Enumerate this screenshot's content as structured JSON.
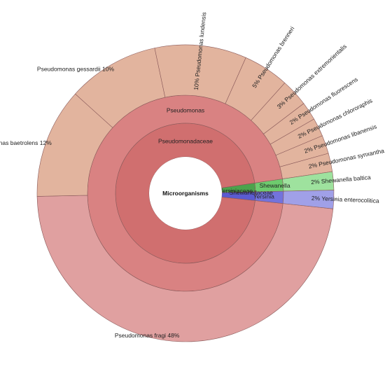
{
  "chart_data": {
    "type": "sunburst",
    "root": "Microorganisms",
    "families": [
      {
        "name": "Pseudomonadaceae",
        "color": "#d06f6f"
      },
      {
        "name": "Yersiniaceae",
        "color": "#5b5bd1"
      },
      {
        "name": "Shewanellaceae",
        "color": "#4ca34c"
      }
    ],
    "genera": [
      {
        "name": "Pseudomonas",
        "family": "Pseudomonadaceae",
        "color": "#d98282"
      },
      {
        "name": "Yersinia",
        "family": "Yersiniaceae",
        "color": "#7373dc"
      },
      {
        "name": "Shewanella",
        "family": "Shewanellaceae",
        "color": "#6ecb6e"
      }
    ],
    "species": [
      {
        "name": "Pseudomonas fragi",
        "percent_label": "48%",
        "value": 48,
        "genus": "Pseudomonas",
        "color": "#e0a0a0"
      },
      {
        "name": "Pseudomonas baetrolens",
        "percent_label": "12%",
        "value": 12,
        "genus": "Pseudomonas",
        "color": "#e2b49e"
      },
      {
        "name": "Pseudomonas gessardii",
        "percent_label": "10%",
        "value": 10,
        "genus": "Pseudomonas",
        "color": "#e2b49e"
      },
      {
        "name": "Pseudomonas lundensis",
        "percent_label": "10%",
        "value": 10,
        "genus": "Pseudomonas",
        "color": "#e2b49e"
      },
      {
        "name": "Pseudomonas brenneri",
        "percent_label": "5%",
        "value": 5,
        "genus": "Pseudomonas",
        "color": "#e2b49e"
      },
      {
        "name": "Pseudomonas extremorientalis",
        "percent_label": "3%",
        "value": 3,
        "genus": "Pseudomonas",
        "color": "#e2b49e"
      },
      {
        "name": "Pseudomonas fluorescens",
        "percent_label": "2%",
        "value": 2,
        "genus": "Pseudomonas",
        "color": "#e2b49e"
      },
      {
        "name": "Pseudomonas chlororaphis",
        "percent_label": "2%",
        "value": 2,
        "genus": "Pseudomonas",
        "color": "#e2b49e"
      },
      {
        "name": "Pseudomonas libanensis",
        "percent_label": "2%",
        "value": 2,
        "genus": "Pseudomonas",
        "color": "#e2b49e"
      },
      {
        "name": "Pseudomonas synxantha",
        "percent_label": "2%",
        "value": 2,
        "genus": "Pseudomonas",
        "color": "#e2b49e"
      },
      {
        "name": "Shewanella baltica",
        "percent_label": "2%",
        "value": 2,
        "genus": "Shewanella",
        "color": "#9ee29e"
      },
      {
        "name": "Yersinia enterocolitica",
        "percent_label": "2%",
        "value": 2,
        "genus": "Yersinia",
        "color": "#a0a0e8"
      }
    ]
  }
}
